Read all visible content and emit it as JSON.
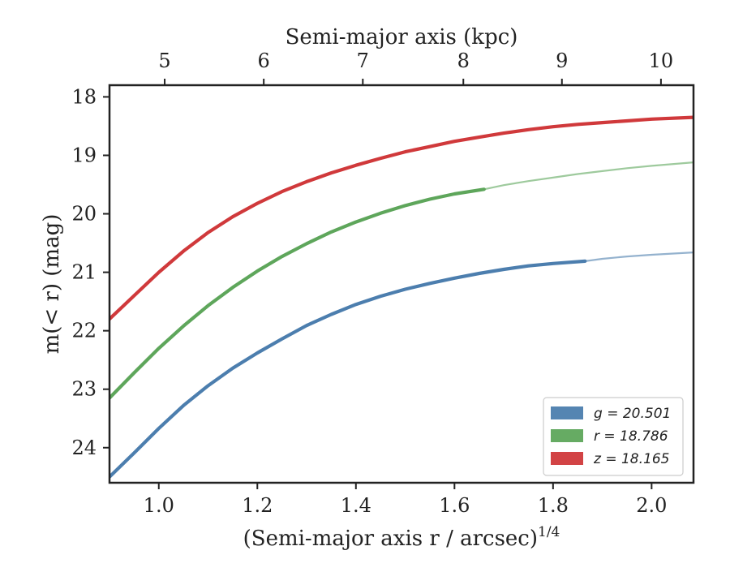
{
  "chart_data": {
    "type": "line",
    "xlabel": "(Semi-major axis r / arcsec)",
    "xlabel_sup": "1/4",
    "top_xlabel": "Semi-major axis (kpc)",
    "ylabel": "m(< r) (mag)",
    "xlim": [
      0.9,
      2.085
    ],
    "ylim": [
      24.6,
      17.8
    ],
    "y_inverted": true,
    "xticks": [
      {
        "value": 1.0,
        "label": "1.0"
      },
      {
        "value": 1.2,
        "label": "1.2"
      },
      {
        "value": 1.4,
        "label": "1.4"
      },
      {
        "value": 1.6,
        "label": "1.6"
      },
      {
        "value": 1.8,
        "label": "1.8"
      },
      {
        "value": 2.0,
        "label": "2.0"
      }
    ],
    "yticks": [
      {
        "value": 18,
        "label": "18"
      },
      {
        "value": 19,
        "label": "19"
      },
      {
        "value": 20,
        "label": "20"
      },
      {
        "value": 21,
        "label": "21"
      },
      {
        "value": 22,
        "label": "22"
      },
      {
        "value": 23,
        "label": "23"
      },
      {
        "value": 24,
        "label": "24"
      }
    ],
    "top_xticks": [
      {
        "label": "5",
        "kpc": 5,
        "x": 1.012
      },
      {
        "label": "6",
        "kpc": 6,
        "x": 1.213
      },
      {
        "label": "7",
        "kpc": 7,
        "x": 1.414
      },
      {
        "label": "8",
        "kpc": 8,
        "x": 1.618
      },
      {
        "label": "9",
        "kpc": 9,
        "x": 1.818
      },
      {
        "label": "10",
        "kpc": 10,
        "x": 2.019
      }
    ],
    "grid": false,
    "legend_position": "bottom-right",
    "legend": [
      {
        "label": "g = 20.501",
        "color": "#4c7eae"
      },
      {
        "label": "r = 18.786",
        "color": "#5ea65b"
      },
      {
        "label": "z = 18.165",
        "color": "#d0393b"
      }
    ],
    "series": [
      {
        "name": "g = 20.501",
        "color": "#4c7eae",
        "x": [
          0.9,
          0.95,
          1.0,
          1.05,
          1.1,
          1.15,
          1.2,
          1.25,
          1.3,
          1.35,
          1.4,
          1.45,
          1.5,
          1.55,
          1.6,
          1.65,
          1.7,
          1.75,
          1.8,
          1.865,
          1.9,
          1.95,
          2.0,
          2.085
        ],
        "y": [
          24.5,
          24.09,
          23.67,
          23.28,
          22.94,
          22.64,
          22.38,
          22.14,
          21.91,
          21.72,
          21.55,
          21.41,
          21.29,
          21.19,
          21.1,
          21.02,
          20.95,
          20.89,
          20.85,
          20.81,
          20.77,
          20.73,
          20.7,
          20.66
        ],
        "solid_until_x": 1.865
      },
      {
        "name": "r = 18.786",
        "color": "#5ea65b",
        "x": [
          0.9,
          0.95,
          1.0,
          1.05,
          1.1,
          1.15,
          1.2,
          1.25,
          1.3,
          1.35,
          1.4,
          1.45,
          1.5,
          1.55,
          1.6,
          1.66,
          1.7,
          1.75,
          1.8,
          1.85,
          1.9,
          1.95,
          2.0,
          2.085
        ],
        "y": [
          23.15,
          22.72,
          22.3,
          21.92,
          21.57,
          21.26,
          20.98,
          20.73,
          20.51,
          20.31,
          20.14,
          19.99,
          19.86,
          19.75,
          19.66,
          19.58,
          19.51,
          19.44,
          19.38,
          19.32,
          19.27,
          19.22,
          19.18,
          19.12
        ],
        "solid_until_x": 1.66
      },
      {
        "name": "z = 18.165",
        "color": "#d0393b",
        "x": [
          0.9,
          0.95,
          1.0,
          1.05,
          1.1,
          1.15,
          1.2,
          1.25,
          1.3,
          1.35,
          1.4,
          1.45,
          1.5,
          1.55,
          1.6,
          1.65,
          1.7,
          1.75,
          1.8,
          1.85,
          1.9,
          1.95,
          2.0,
          2.085
        ],
        "y": [
          21.8,
          21.4,
          21.0,
          20.64,
          20.32,
          20.05,
          19.82,
          19.62,
          19.45,
          19.3,
          19.17,
          19.05,
          18.94,
          18.85,
          18.76,
          18.69,
          18.62,
          18.56,
          18.51,
          18.47,
          18.44,
          18.41,
          18.38,
          18.35
        ],
        "solid_until_x": 2.085
      }
    ]
  }
}
